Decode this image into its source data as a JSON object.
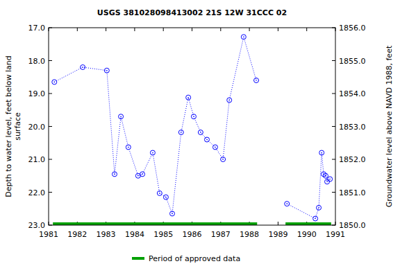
{
  "chart_data": {
    "type": "scatter",
    "title": "USGS 381028098413002 21S 12W 31CCC 02",
    "ylabel": [
      "Depth to water level, feet below land",
      "surface"
    ],
    "y2label": "Groundwater level above NAVD 1988, feet",
    "xlim": [
      1981,
      1991
    ],
    "xticks": [
      1981,
      1982,
      1983,
      1984,
      1985,
      1986,
      1987,
      1988,
      1989,
      1990,
      1991
    ],
    "ylim": [
      23,
      17
    ],
    "yticks": [
      {
        "value": 17,
        "label": "17.0"
      },
      {
        "value": 18,
        "label": "18.0"
      },
      {
        "value": 19,
        "label": "19.0"
      },
      {
        "value": 20,
        "label": "20.0"
      },
      {
        "value": 21,
        "label": "21.0"
      },
      {
        "value": 22,
        "label": "22.0"
      },
      {
        "value": 23,
        "label": "23.0"
      }
    ],
    "y2lim": [
      1850,
      1856
    ],
    "y2ticks": [
      {
        "value": 1850,
        "label": "1850.0"
      },
      {
        "value": 1851,
        "label": "1851.0"
      },
      {
        "value": 1852,
        "label": "1852.0"
      },
      {
        "value": 1853,
        "label": "1853.0"
      },
      {
        "value": 1854,
        "label": "1854.0"
      },
      {
        "value": 1855,
        "label": "1855.0"
      },
      {
        "value": 1856,
        "label": "1856.0"
      }
    ],
    "series": [
      {
        "color": "#0000ff",
        "marker": "circle",
        "line_style": "dotted",
        "x": [
          1981.2,
          1982.19,
          1983.03,
          1983.3,
          1983.52,
          1983.78,
          1984.12,
          1984.27,
          1984.63,
          1984.87,
          1985.09,
          1985.31,
          1985.62,
          1985.87,
          1986.06,
          1986.3,
          1986.52,
          1986.81,
          1987.08,
          1987.3,
          1987.8,
          1988.24,
          null,
          1989.31,
          1990.3,
          1990.42,
          1990.52,
          1990.59,
          1990.66,
          1990.71,
          1990.81
        ],
        "values": [
          18.65,
          18.2,
          18.3,
          21.45,
          19.7,
          20.63,
          21.5,
          21.45,
          20.8,
          22.03,
          22.15,
          22.65,
          20.18,
          19.12,
          19.7,
          20.18,
          20.4,
          20.63,
          21.0,
          19.2,
          17.28,
          18.6,
          null,
          22.35,
          22.8,
          22.47,
          20.8,
          21.45,
          21.5,
          21.68,
          21.6
        ]
      }
    ],
    "periods": {
      "name": "Period of approved data",
      "color": "#00a000",
      "ranges": [
        [
          1981.15,
          1988.27
        ],
        [
          1989.26,
          1990.85
        ]
      ]
    }
  }
}
